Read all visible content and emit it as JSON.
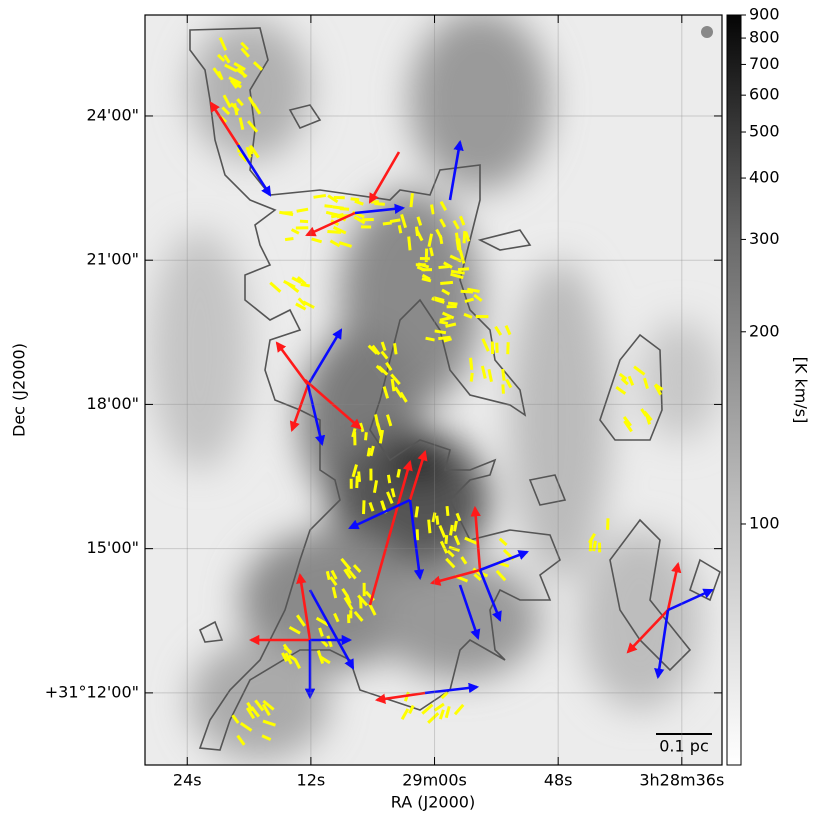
{
  "chart_data": {
    "type": "image",
    "xlabel": "RA (J2000)",
    "ylabel": "Dec (J2000)",
    "xlim": [
      12568.1,
      12512.1
    ],
    "xticks": [
      {
        "value": 12564,
        "label": "24s"
      },
      {
        "value": 12552,
        "label": "12s"
      },
      {
        "value": 12540,
        "label": "29m00s"
      },
      {
        "value": 12528,
        "label": "48s"
      },
      {
        "value": 12516,
        "label": "3h28m36s"
      }
    ],
    "ylim": [
      112230,
      113166
    ],
    "yticks": [
      {
        "value": 113040,
        "label": "24'00\""
      },
      {
        "value": 112860,
        "label": "21'00\""
      },
      {
        "value": 112680,
        "label": "18'00\""
      },
      {
        "value": 112500,
        "label": "15'00\""
      },
      {
        "value": 112320,
        "label": "+31°12'00\""
      }
    ],
    "grid": true,
    "colorbar": {
      "label": "[K km/s]",
      "clim": [
        60,
        900
      ],
      "ticks": [
        100,
        200,
        300,
        400,
        500,
        600,
        700,
        800,
        900
      ]
    },
    "scalebar": "0.1 pc"
  }
}
